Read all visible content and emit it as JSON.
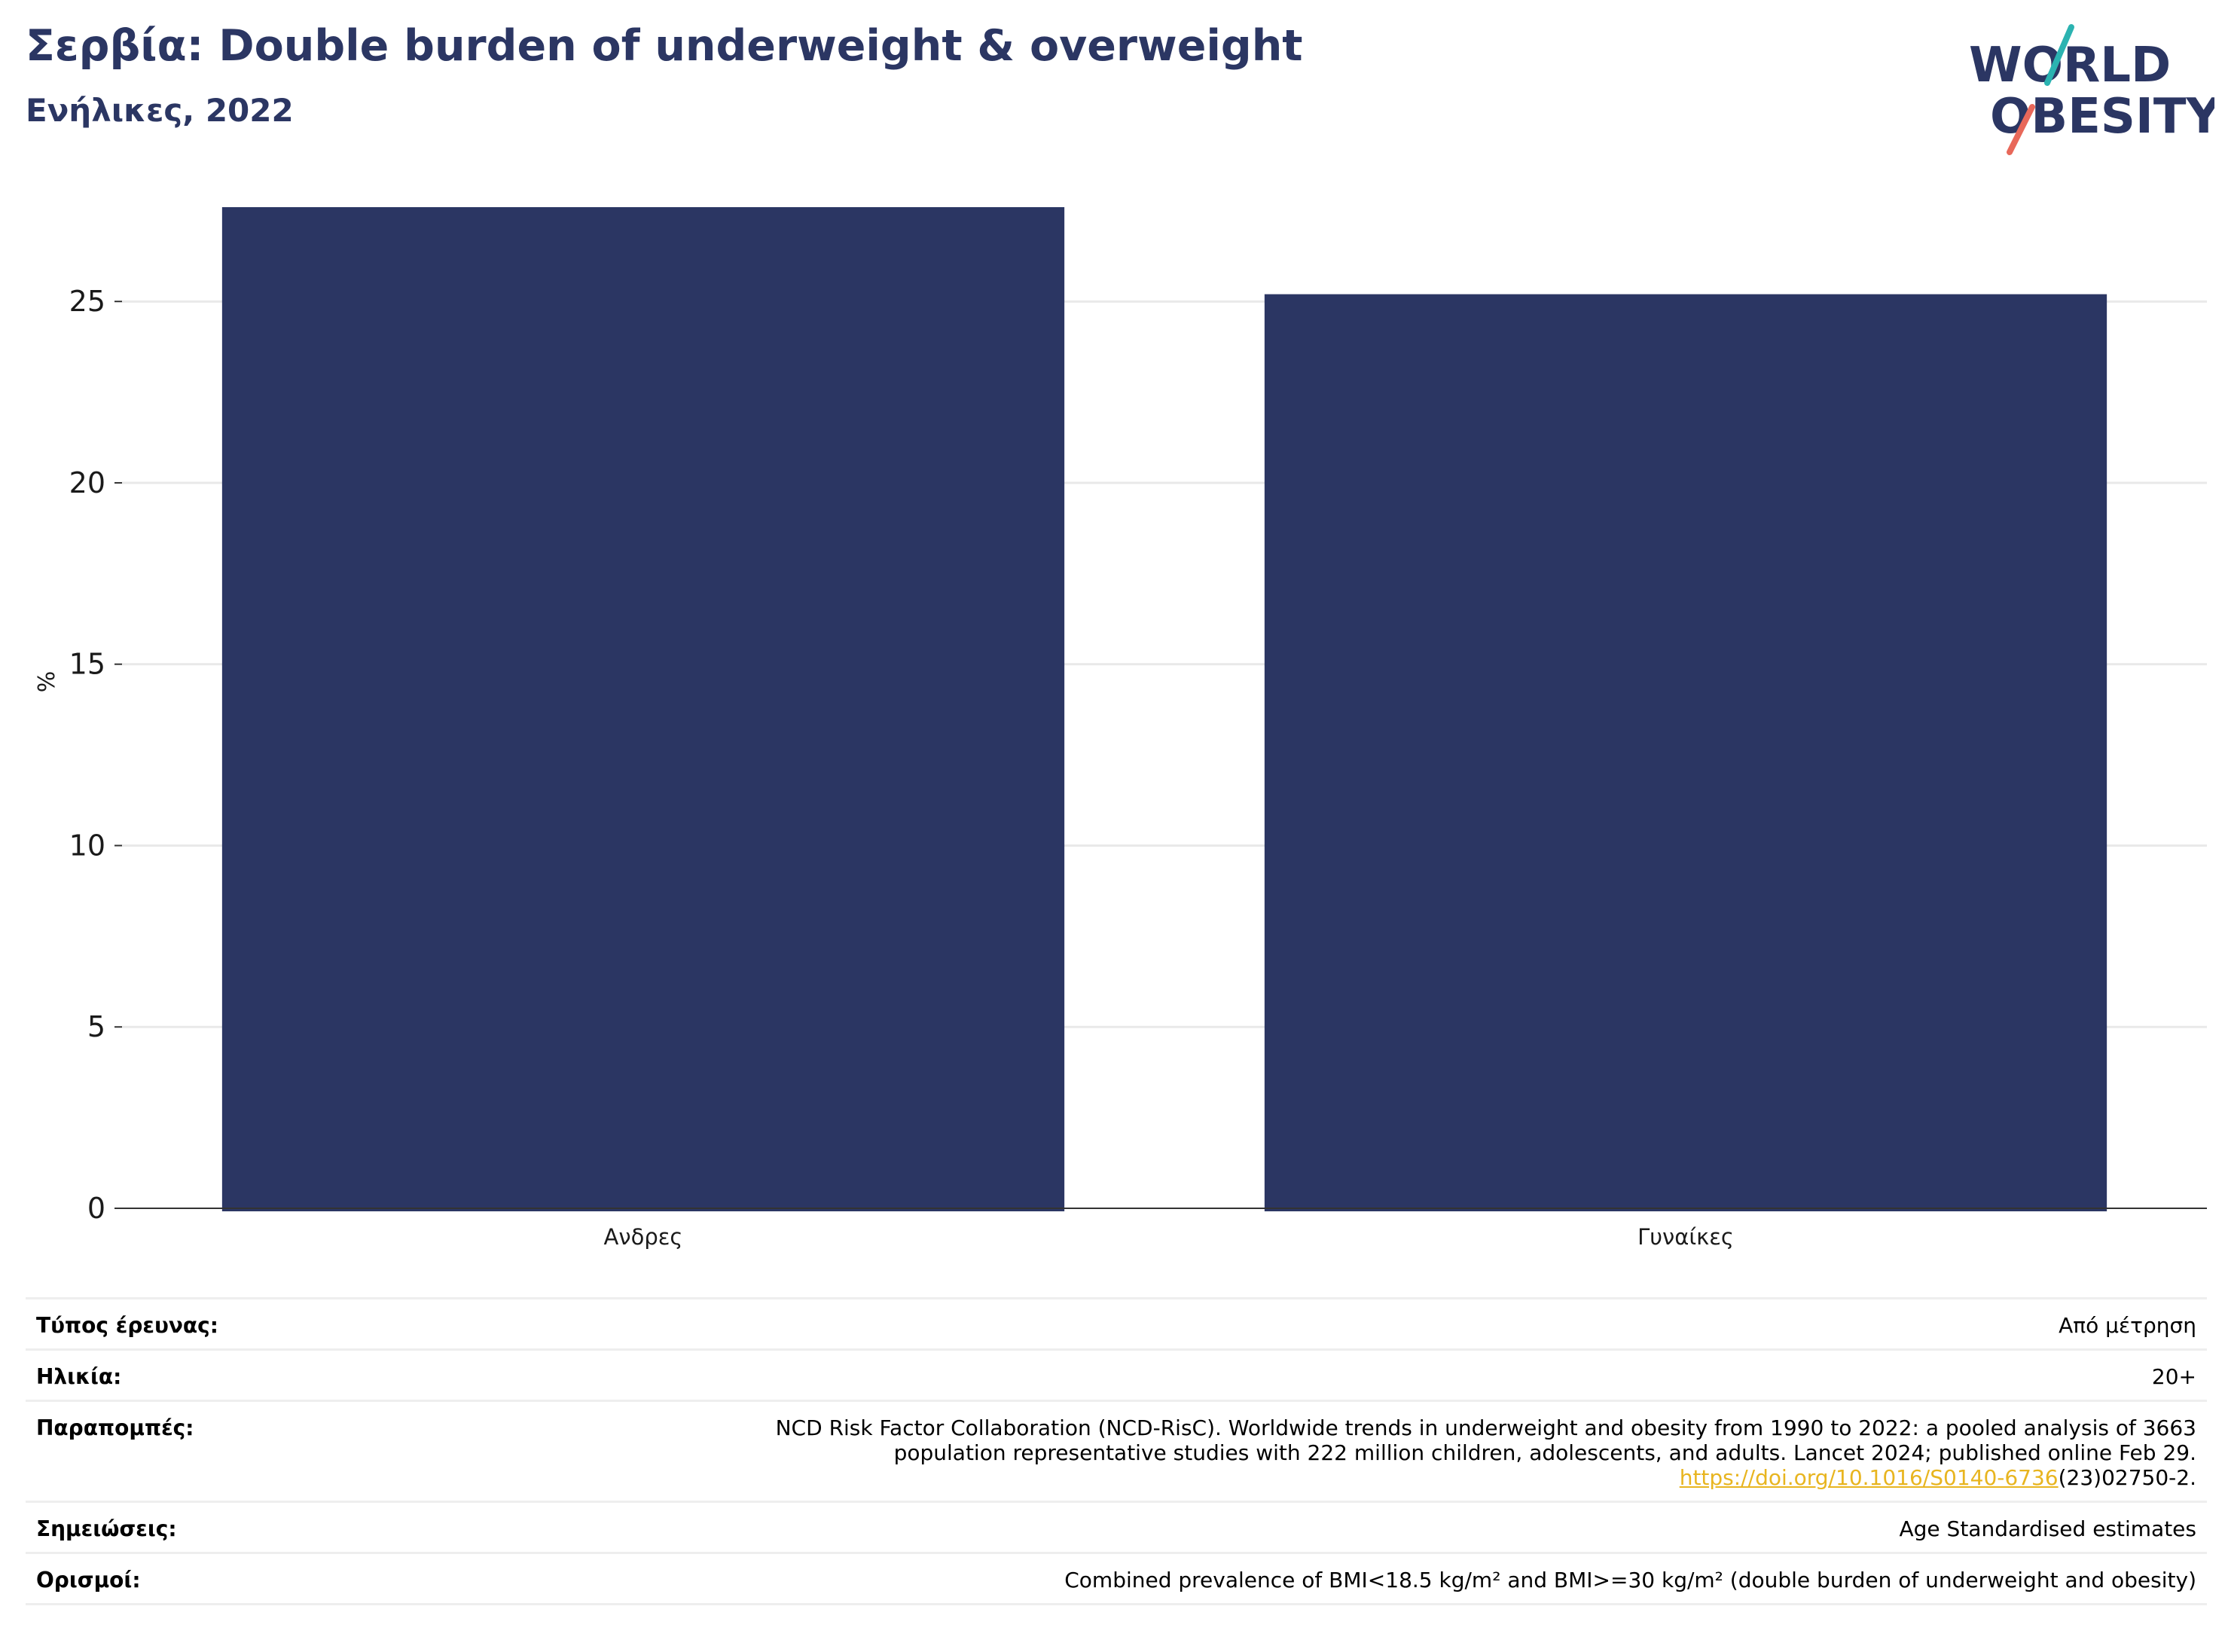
{
  "header": {
    "title": "Σερβία: Double burden of underweight & overweight",
    "subtitle": "Ενήλικες, 2022"
  },
  "logo": {
    "line1": "WORLD",
    "line2": "OBESITY"
  },
  "chart_data": {
    "type": "bar",
    "categories": [
      "Ανδρες",
      "Γυναίκες"
    ],
    "values": [
      27.6,
      25.2
    ],
    "ylabel": "%",
    "ylim": [
      0,
      27.6
    ],
    "yticks": [
      0,
      5,
      10,
      15,
      20,
      25
    ],
    "grid": true,
    "bar_color": "#2b3663"
  },
  "info": {
    "survey_type": {
      "label": "Τύπος έρευνας:",
      "value": "Από μέτρηση"
    },
    "age": {
      "label": "Ηλικία:",
      "value": "20+"
    },
    "references": {
      "label": "Παραπομπές:",
      "line1": "NCD Risk Factor Collaboration (NCD-RisC). Worldwide trends in underweight and obesity from 1990 to 2022: a pooled analysis of 3663",
      "line2": "population representative studies with 222 million children, adolescents, and adults. Lancet 2024; published online Feb 29.",
      "link": "https://doi.org/10.1016/S0140-6736",
      "link_suffix": "(23)02750-2."
    },
    "notes": {
      "label": "Σημειώσεις:",
      "value": "Age Standardised estimates"
    },
    "definitions": {
      "label": "Ορισμοί:",
      "value": "Combined prevalence of BMI<18.5 kg/m² and BMI>=30 kg/m² (double burden of underweight and obesity)"
    }
  },
  "colors": {
    "navy": "#2b3663",
    "teal": "#2bb3b1",
    "coral": "#e8685a",
    "link": "#e8b520"
  }
}
